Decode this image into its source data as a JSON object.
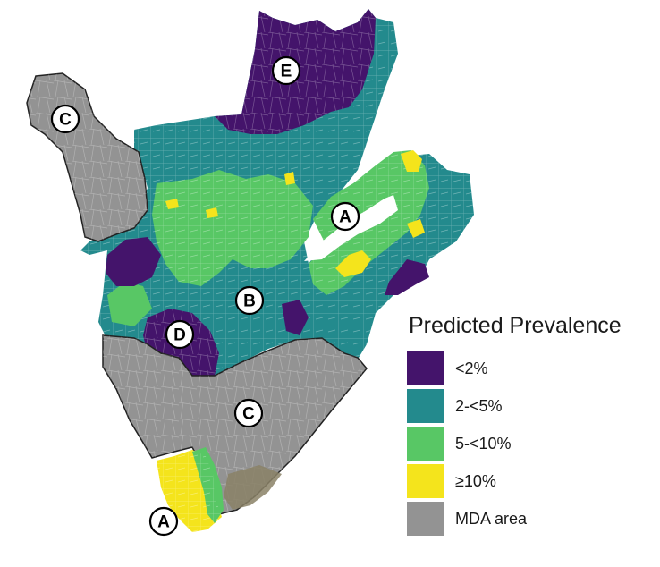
{
  "legend": {
    "title": "Predicted Prevalence",
    "items": [
      {
        "label": "<2%",
        "color": "#44146b"
      },
      {
        "label": "2-<5%",
        "color": "#238a8d"
      },
      {
        "label": "5-<10%",
        "color": "#58c765"
      },
      {
        "label": "≥10%",
        "color": "#f4e41c"
      },
      {
        "label": "MDA area",
        "color": "#939393"
      }
    ]
  },
  "map": {
    "region_labels": [
      "A",
      "A",
      "B",
      "C",
      "C",
      "D",
      "E"
    ]
  }
}
